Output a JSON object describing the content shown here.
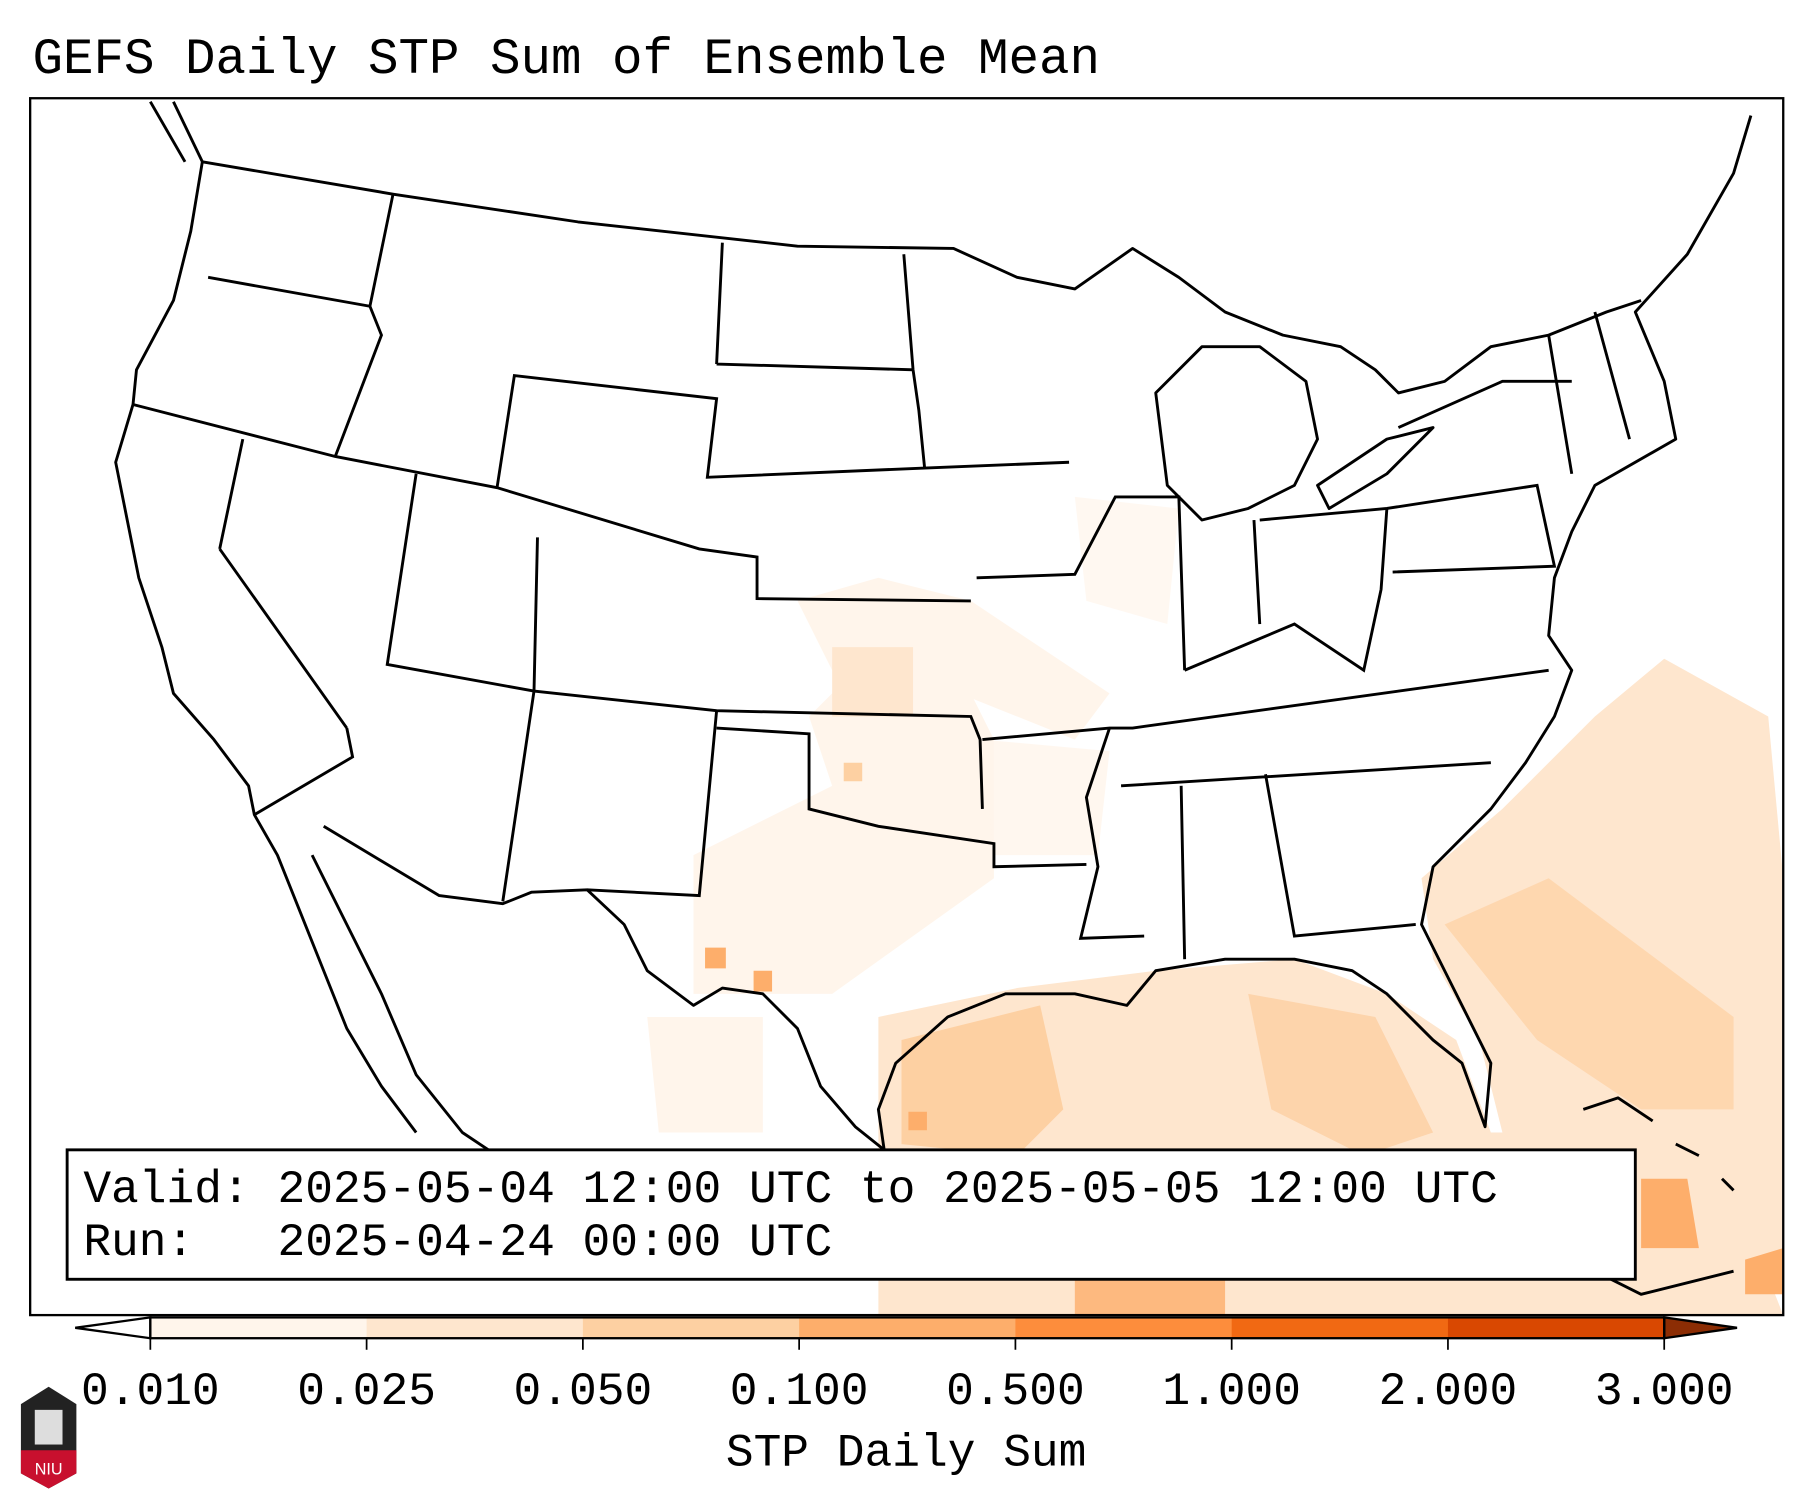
{
  "title": "GEFS Daily STP Sum of Ensemble Mean",
  "info_box": {
    "valid_line": "Valid: 2025-05-04 12:00 UTC to 2025-05-05 12:00 UTC",
    "run_line": "Run:   2025-04-24 00:00 UTC"
  },
  "colorbar": {
    "label": "STP Daily Sum",
    "ticks": [
      "0.010",
      "0.025",
      "0.050",
      "0.100",
      "0.500",
      "1.000",
      "2.000",
      "3.000"
    ],
    "colors": [
      "#fff5eb",
      "#fee6ce",
      "#fdd0a2",
      "#fdae6b",
      "#fd8d3c",
      "#f16913",
      "#d94801",
      "#8c2d04"
    ],
    "under_color": "#ffffff",
    "over_color": "#8c2d04"
  },
  "logo": {
    "text": "NIU"
  }
}
